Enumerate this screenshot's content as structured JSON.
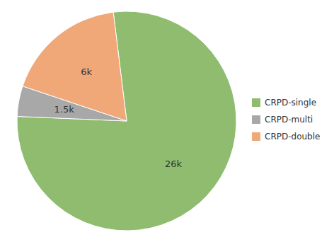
{
  "chart_data": {
    "type": "pie",
    "categories": [
      "CRPD-single",
      "CRPD-multi",
      "CRPD-double"
    ],
    "values": [
      26,
      1.5,
      6
    ],
    "value_labels": [
      "26k",
      "1.5k",
      "6k"
    ],
    "colors": [
      "#8fbc6e",
      "#a8a8a8",
      "#f0a878"
    ],
    "data_labels": true,
    "legend": "right"
  }
}
